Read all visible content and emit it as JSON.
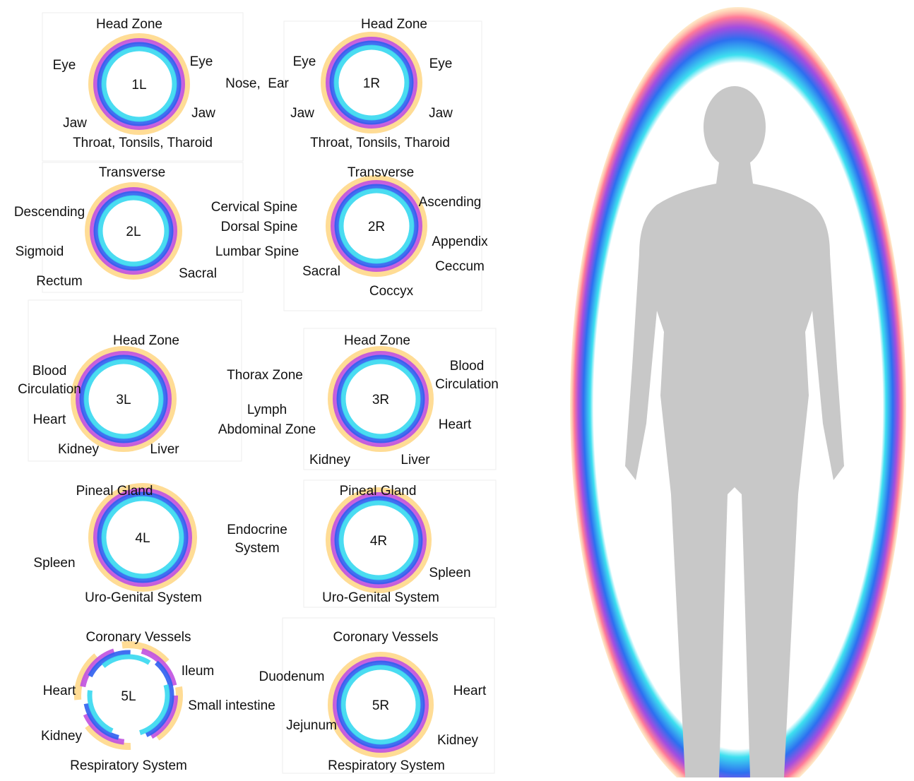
{
  "panels": [
    {
      "center": "1L",
      "labels": [
        "Head Zone",
        "Eye",
        "Eye",
        "Jaw",
        "Jaw",
        "Throat, Tonsils, Tharoid"
      ]
    },
    {
      "center": "1R",
      "labels": [
        "Head Zone",
        "Eye",
        "Eye",
        "Jaw",
        "Jaw",
        "Throat, Tonsils, Tharoid"
      ]
    },
    {
      "center": "2L",
      "labels": [
        "Transverse",
        "Descending",
        "Sigmoid",
        "Rectum",
        "Sacral"
      ]
    },
    {
      "center": "2R",
      "labels": [
        "Transverse",
        "Ascending",
        "Appendix",
        "Ceccum",
        "Sacral",
        "Coccyx"
      ]
    },
    {
      "center": "3L",
      "labels": [
        "Head Zone",
        "Blood",
        "Circulation",
        "Heart",
        "Kidney",
        "Liver"
      ]
    },
    {
      "center": "3R",
      "labels": [
        "Head Zone",
        "Blood",
        "Circulation",
        "Heart",
        "Kidney",
        "Liver"
      ]
    },
    {
      "center": "4L",
      "labels": [
        "Pineal Gland",
        "Spleen",
        "Uro-Genital System"
      ]
    },
    {
      "center": "4R",
      "labels": [
        "Pineal Gland",
        "Spleen",
        "Uro-Genital System"
      ]
    },
    {
      "center": "5L",
      "labels": [
        "Coronary Vessels",
        "Ileum",
        "Heart",
        "Small intestine",
        "Kidney",
        "Respiratory System"
      ]
    },
    {
      "center": "5R",
      "labels": [
        "Coronary Vessels",
        "Duodenum",
        "Heart",
        "Jejunum",
        "Kidney",
        "Respiratory System"
      ]
    }
  ],
  "shared_labels": [
    "Nose,  Ear",
    "Cervical Spine",
    "Dorsal Spine",
    "Lumbar Spine",
    "Thorax Zone",
    "Lymph",
    "Abdominal Zone",
    "Endocrine",
    "System"
  ]
}
